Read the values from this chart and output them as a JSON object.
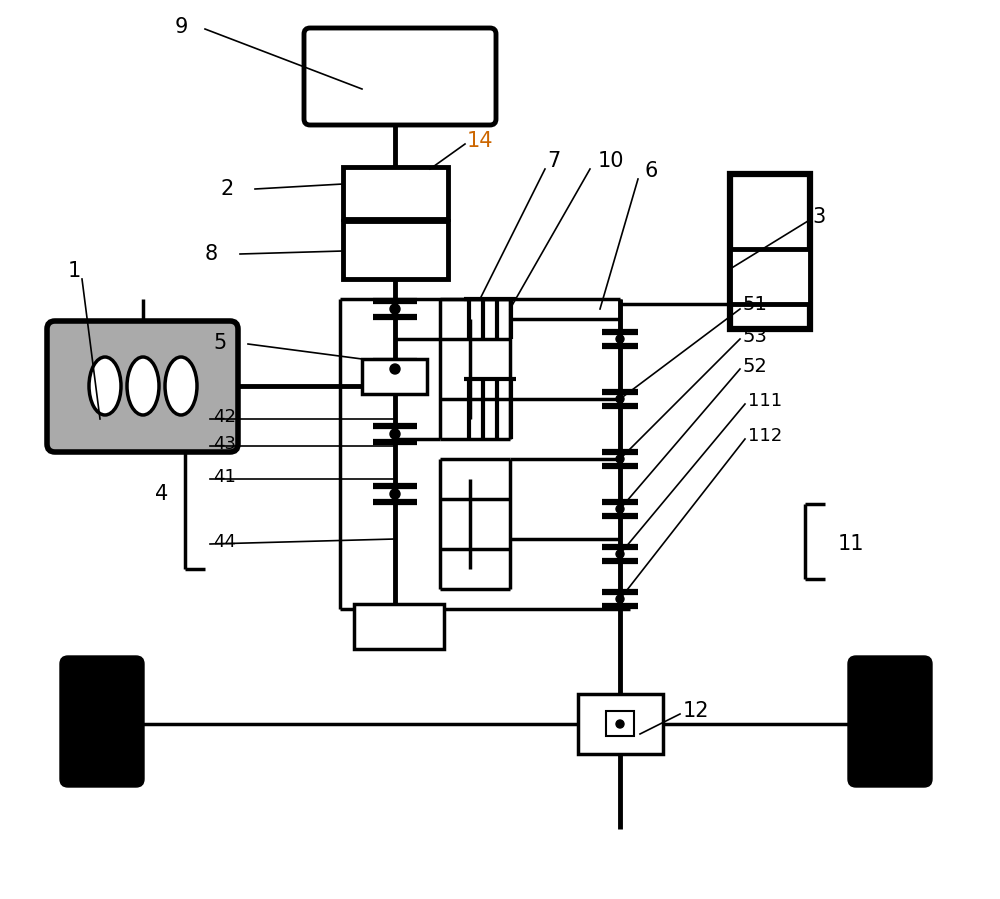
{
  "bg_color": "#ffffff",
  "label_14_color": "#cc6600",
  "engine_color": "#aaaaaa",
  "figsize": [
    10.0,
    8.99
  ],
  "dpi": 100
}
